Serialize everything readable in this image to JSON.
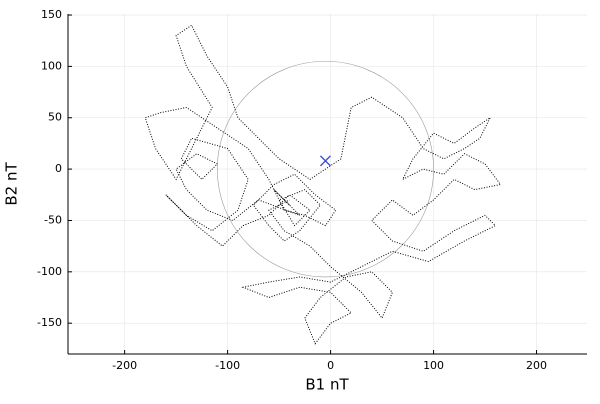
{
  "chart_data": {
    "type": "hodogram",
    "xlabel": "B1 nT",
    "ylabel": "B2 nT",
    "xlim": [
      -255,
      249
    ],
    "ylim": [
      -180,
      151
    ],
    "xticks": [
      -200,
      -100,
      0,
      100,
      200
    ],
    "yticks": [
      -150,
      -100,
      -50,
      0,
      50,
      100,
      150
    ],
    "grid": true,
    "x": [
      -40,
      -55,
      -30,
      -70,
      -95,
      -120,
      -140,
      -150,
      -130,
      -110,
      -125,
      -145,
      -135,
      -100,
      -80,
      -90,
      -115,
      -140,
      -160,
      -130,
      -105,
      -85,
      -60,
      -40,
      -20,
      -35,
      -50,
      -25,
      -10,
      -30,
      -45,
      -60,
      -75,
      -55,
      -35,
      -15,
      5,
      -5,
      -25,
      -45,
      -60,
      -80,
      -110,
      -140,
      -165,
      -180,
      -170,
      -150,
      -130,
      -115,
      -140,
      -150,
      -135,
      -120,
      -100,
      -90,
      -70,
      -50,
      -20,
      10,
      20,
      40,
      70,
      90,
      110,
      130,
      145,
      155,
      140,
      120,
      100,
      80,
      70,
      90,
      110,
      130,
      150,
      165,
      140,
      120,
      100,
      80,
      60,
      40,
      60,
      90,
      120,
      150,
      160,
      130,
      95,
      60,
      30,
      0,
      -30,
      -60,
      -85,
      -60,
      -30,
      0,
      20,
      0,
      -15,
      -25,
      -10,
      15,
      40,
      60,
      50,
      30,
      0,
      -20,
      -45,
      -60,
      -40
    ],
    "series": [
      {
        "color": "#000000",
        "values": [
          -35,
          -20,
          -45,
          -30,
          -50,
          -40,
          -20,
          0,
          15,
          5,
          -10,
          10,
          30,
          20,
          -10,
          -40,
          -60,
          -45,
          -25,
          -55,
          -75,
          -55,
          -45,
          -25,
          -40,
          -55,
          -30,
          -20,
          -35,
          -60,
          -70,
          -55,
          -35,
          -15,
          -5,
          -25,
          -40,
          -55,
          -45,
          -40,
          -10,
          20,
          40,
          60,
          55,
          50,
          20,
          -10,
          30,
          60,
          100,
          130,
          140,
          110,
          80,
          50,
          30,
          10,
          -10,
          10,
          60,
          70,
          50,
          20,
          10,
          20,
          30,
          50,
          40,
          25,
          35,
          10,
          -10,
          0,
          -5,
          15,
          5,
          -15,
          -20,
          -10,
          -30,
          -45,
          -30,
          -50,
          -70,
          -80,
          -60,
          -45,
          -55,
          -70,
          -90,
          -80,
          -95,
          -110,
          -105,
          -110,
          -115,
          -125,
          -115,
          -120,
          -140,
          -150,
          -170,
          -145,
          -125,
          -105,
          -100,
          -120,
          -145,
          -120,
          -95,
          -75,
          -60,
          -40,
          -30
        ]
      }
    ],
    "circle": {
      "cx": -5,
      "cy": 0,
      "r": 105,
      "color": "#999999"
    },
    "marker": {
      "x": -5,
      "y": 8,
      "color": "#3a4fd6"
    }
  }
}
